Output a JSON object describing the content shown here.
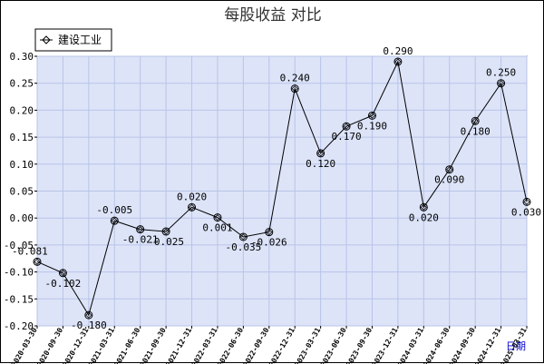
{
  "chart_data": {
    "type": "line",
    "title": "每股收益  对比",
    "xlabel": "日期",
    "ylabel": "",
    "ylim": [
      -0.2,
      0.3
    ],
    "yticks": [
      "0.30",
      "0.25",
      "0.20",
      "0.15",
      "0.10",
      "0.05",
      "0.00",
      "-0.05",
      "-0.10",
      "-0.15",
      "-0.20"
    ],
    "grid": true,
    "legend_position": "top-left",
    "categories": [
      "2020-03-30",
      "2020-09-30",
      "2020-12-31",
      "2021-03-31",
      "2021-06-30",
      "2021-09-30",
      "2021-12-31",
      "2022-03-31",
      "2022-06-30",
      "2022-09-30",
      "2022-12-31",
      "2023-03-31",
      "2023-06-30",
      "2023-09-30",
      "2023-12-31",
      "2024-03-31",
      "2024-06-30",
      "2024-09-30",
      "2024-12-31",
      "2025-03-31"
    ],
    "series": [
      {
        "name": "建设工业",
        "color": "#000000",
        "values": [
          -0.081,
          -0.102,
          -0.18,
          -0.005,
          -0.021,
          -0.025,
          0.02,
          0.001,
          -0.035,
          -0.026,
          0.24,
          0.12,
          0.17,
          0.19,
          0.29,
          0.02,
          0.09,
          0.18,
          0.25,
          0.03
        ],
        "labels": [
          "-0.081",
          "-0.102",
          "-0.180",
          "-0.005",
          "-0.021",
          "-0.025",
          "0.020",
          "0.001",
          "-0.035",
          "-0.026",
          "0.240",
          "0.120",
          "0.170",
          "0.190",
          "0.290",
          "0.020",
          "0.090",
          "0.180",
          "0.250",
          "0.030"
        ]
      }
    ],
    "colors": {
      "plot_background": "#dde4f8",
      "grid": "#b8c4e8",
      "frame": "#000000"
    }
  }
}
